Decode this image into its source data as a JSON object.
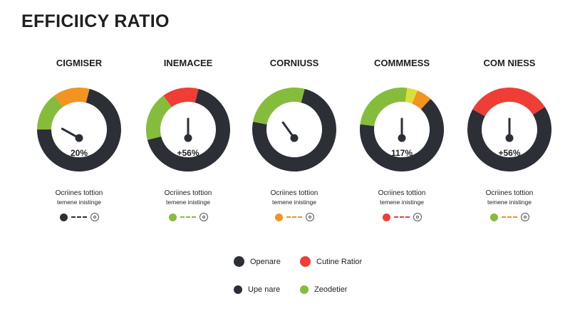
{
  "title": "EFFICIICY RATIO",
  "chart_data": {
    "type": "gauge",
    "gauges": [
      {
        "name": "CIGMISER",
        "value_label": "20%",
        "needle_fraction": 0.33,
        "segments": [
          {
            "from": 0.0,
            "to": 0.25,
            "color": "#2c2f36"
          },
          {
            "from": 0.25,
            "to": 0.4,
            "color": "#86bc3b"
          },
          {
            "from": 0.4,
            "to": 0.54,
            "color": "#f39320"
          },
          {
            "from": 0.54,
            "to": 1.0,
            "color": "#2c2f36"
          }
        ],
        "caption_line1": "Ocriines tottion",
        "caption_line2": "temene inistinge",
        "legend_dot_color": "#2c2f36"
      },
      {
        "name": "INEMACEE",
        "value_label": "+56%",
        "needle_fraction": 0.5,
        "segments": [
          {
            "from": 0.0,
            "to": 0.21,
            "color": "#2c2f36"
          },
          {
            "from": 0.21,
            "to": 0.4,
            "color": "#86bc3b"
          },
          {
            "from": 0.4,
            "to": 0.54,
            "color": "#ee3e36"
          },
          {
            "from": 0.54,
            "to": 1.0,
            "color": "#2c2f36"
          }
        ],
        "caption_line1": "Ocriines tottion",
        "caption_line2": "temene inistinge",
        "legend_dot_color": "#86bc3b"
      },
      {
        "name": "CORNIUSS",
        "value_label": "",
        "needle_fraction": 0.4,
        "segments": [
          {
            "from": 0.0,
            "to": 0.28,
            "color": "#2c2f36"
          },
          {
            "from": 0.28,
            "to": 0.54,
            "color": "#86bc3b"
          },
          {
            "from": 0.54,
            "to": 1.0,
            "color": "#2c2f36"
          }
        ],
        "caption_line1": "Ocriines tottion",
        "caption_line2": "temene inistinge",
        "legend_dot_color": "#f39320"
      },
      {
        "name": "COMMMESS",
        "value_label": "117%",
        "needle_fraction": 0.5,
        "segments": [
          {
            "from": 0.0,
            "to": 0.27,
            "color": "#2c2f36"
          },
          {
            "from": 0.27,
            "to": 0.52,
            "color": "#86bc3b"
          },
          {
            "from": 0.52,
            "to": 0.56,
            "color": "#d8e03a"
          },
          {
            "from": 0.56,
            "to": 0.62,
            "color": "#f39320"
          },
          {
            "from": 0.62,
            "to": 1.0,
            "color": "#2c2f36"
          }
        ],
        "caption_line1": "Ocriines tottion",
        "caption_line2": "temene inistinge",
        "legend_dot_color": "#ee3e36"
      },
      {
        "name": "COM NIESS",
        "value_label": "+56%",
        "needle_fraction": 0.5,
        "segments": [
          {
            "from": 0.0,
            "to": 0.33,
            "color": "#2c2f36"
          },
          {
            "from": 0.33,
            "to": 0.66,
            "color": "#ee3e36"
          },
          {
            "from": 0.66,
            "to": 1.0,
            "color": "#2c2f36"
          }
        ],
        "caption_line1": "Ocriines tottion",
        "caption_line2": "temene inistinge",
        "legend_dot_color": "#86bc3b"
      }
    ],
    "legend": [
      {
        "label": "Openare",
        "color": "#2c2f36"
      },
      {
        "label": "Cutine Ratior",
        "color": "#ee3e36"
      },
      {
        "label": "Upe nare",
        "color": "#2c2f36"
      },
      {
        "label": "Zeodetier",
        "color": "#86bc3b"
      }
    ],
    "legend_placement": "bottom"
  },
  "colors": {
    "dark": "#2c2f36",
    "green": "#86bc3b",
    "orange": "#f39320",
    "red": "#ee3e36",
    "yellow": "#d8e03a",
    "dash_accent": "#f39320"
  }
}
